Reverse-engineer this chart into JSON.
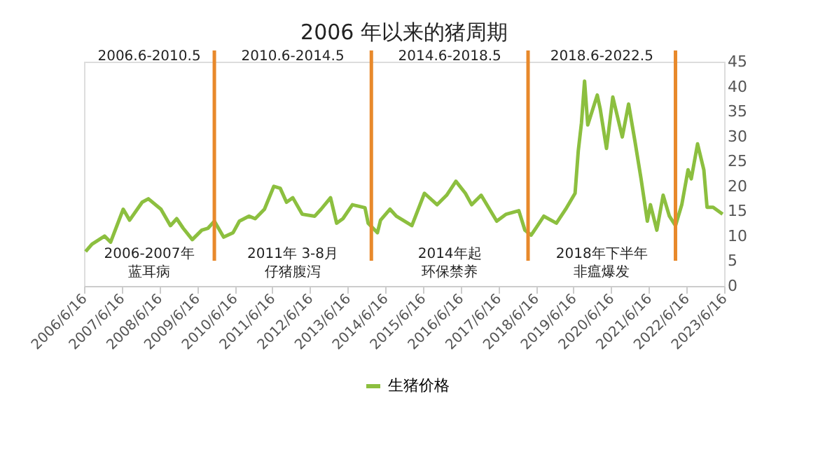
{
  "chart_data": {
    "type": "line",
    "title": "2006 年以来的猪周期",
    "x": [
      "2006-07",
      "2006-09",
      "2007-01",
      "2007-03",
      "2007-07",
      "2007-09",
      "2008-01",
      "2008-03",
      "2008-07",
      "2008-10",
      "2008-12",
      "2009-02",
      "2009-05",
      "2009-08",
      "2009-10",
      "2009-12",
      "2010-03",
      "2010-06",
      "2010-08",
      "2010-11",
      "2011-01",
      "2011-04",
      "2011-07",
      "2011-09",
      "2011-11",
      "2012-01",
      "2012-04",
      "2012-08",
      "2012-10",
      "2013-01",
      "2013-03",
      "2013-05",
      "2013-08",
      "2013-12",
      "2014-01",
      "2014-04",
      "2014-05",
      "2014-08",
      "2014-10",
      "2015-03",
      "2015-07",
      "2015-11",
      "2016-02",
      "2016-05",
      "2016-08",
      "2016-10",
      "2017-01",
      "2017-06",
      "2017-09",
      "2018-01",
      "2018-03",
      "2018-05",
      "2018-09",
      "2019-01",
      "2019-04",
      "2019-07",
      "2019-08",
      "2019-09",
      "2019-10",
      "2019-11",
      "2020-02",
      "2020-03",
      "2020-05",
      "2020-07",
      "2020-10",
      "2020-12",
      "2021-02",
      "2021-04",
      "2021-06",
      "2021-07",
      "2021-09",
      "2021-11",
      "2022-01",
      "2022-03",
      "2022-05",
      "2022-07",
      "2022-08",
      "2022-10",
      "2022-12",
      "2023-01",
      "2023-03",
      "2023-06"
    ],
    "series": [
      {
        "name": "生猪价格",
        "color": "#8cbf3f",
        "values": [
          6.9,
          8.4,
          10.0,
          8.8,
          15.4,
          13.2,
          16.8,
          17.5,
          15.4,
          12.1,
          13.5,
          11.6,
          9.3,
          11.2,
          11.6,
          13.0,
          9.8,
          10.7,
          13.0,
          14.0,
          13.5,
          15.4,
          20.0,
          19.6,
          16.8,
          17.7,
          14.4,
          14.0,
          15.4,
          17.7,
          12.6,
          13.5,
          16.3,
          15.7,
          12.6,
          10.7,
          13.2,
          15.4,
          14.0,
          12.1,
          18.6,
          16.3,
          18.2,
          21.0,
          18.6,
          16.3,
          18.2,
          13.0,
          14.4,
          15.1,
          11.2,
          10.2,
          14.0,
          12.6,
          15.4,
          18.6,
          27.1,
          32.7,
          41.1,
          32.3,
          38.3,
          35.5,
          27.6,
          37.9,
          29.9,
          36.5,
          29.0,
          21.5,
          13.0,
          16.3,
          11.2,
          18.2,
          14.0,
          12.1,
          16.3,
          23.3,
          21.5,
          28.5,
          23.3,
          15.8,
          15.8,
          14.4
        ]
      }
    ],
    "xlim": [
      "2006-06-16",
      "2023-06-16"
    ],
    "xticks": [
      {
        "value": "2006-06-16",
        "label": "2006/6/16"
      },
      {
        "value": "2007-06-16",
        "label": "2007/6/16"
      },
      {
        "value": "2008-06-16",
        "label": "2008/6/16"
      },
      {
        "value": "2009-06-16",
        "label": "2009/6/16"
      },
      {
        "value": "2010-06-16",
        "label": "2010/6/16"
      },
      {
        "value": "2011-06-16",
        "label": "2011/6/16"
      },
      {
        "value": "2012-06-16",
        "label": "2012/6/16"
      },
      {
        "value": "2013-06-16",
        "label": "2013/6/16"
      },
      {
        "value": "2014-06-16",
        "label": "2014/6/16"
      },
      {
        "value": "2015-06-16",
        "label": "2015/6/16"
      },
      {
        "value": "2016-06-16",
        "label": "2016/6/16"
      },
      {
        "value": "2017-06-16",
        "label": "2017/6/16"
      },
      {
        "value": "2018-06-16",
        "label": "2018/6/16"
      },
      {
        "value": "2019-06-16",
        "label": "2019/6/16"
      },
      {
        "value": "2020-06-16",
        "label": "2020/6/16"
      },
      {
        "value": "2021-06-16",
        "label": "2021/6/16"
      },
      {
        "value": "2022-06-16",
        "label": "2022/6/16"
      },
      {
        "value": "2023-06-16",
        "label": "2023/6/16"
      }
    ],
    "ylim": [
      0,
      45
    ],
    "yticks": [
      0,
      5,
      10,
      15,
      20,
      25,
      30,
      35,
      40,
      45
    ],
    "ref_lines": [
      {
        "axis": "x",
        "value": "2009-12",
        "color": "#e8892b"
      },
      {
        "axis": "x",
        "value": "2014-02",
        "color": "#e8892b"
      },
      {
        "axis": "x",
        "value": "2018-04",
        "color": "#e8892b"
      },
      {
        "axis": "x",
        "value": "2022-03",
        "color": "#e8892b"
      }
    ],
    "annotations": [
      "2006.6-2010.5",
      "2010.6-2014.5",
      "2014.6-2018.5",
      "2018.6-2022.5",
      "2006-2007年",
      "蓝耳病",
      "2011年 3-8月",
      "仔猪腹泻",
      "2014年起",
      "环保禁养",
      "2018年下半年",
      "非瘟爆发"
    ],
    "grid": false,
    "legend": "bottom",
    "marker": "none",
    "line_style": "solid"
  }
}
